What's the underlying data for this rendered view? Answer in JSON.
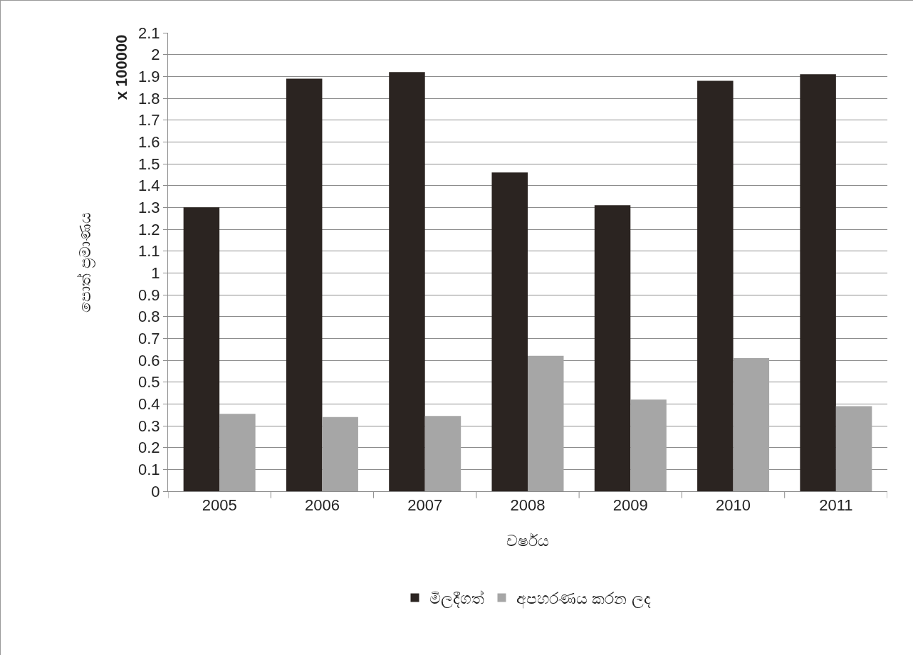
{
  "chart_data": {
    "type": "bar",
    "xlabel": "වර්ෂය",
    "ylabel": "පොත් ප්‍රමාණය",
    "annotations": [
      "x 100000"
    ],
    "categories": [
      "2005",
      "2006",
      "2007",
      "2008",
      "2009",
      "2010",
      "2011"
    ],
    "series": [
      {
        "name": "මිලදීගත්",
        "color": "#2b2421",
        "values": [
          1.3,
          1.89,
          1.92,
          1.46,
          1.31,
          1.88,
          1.91
        ]
      },
      {
        "name": "අපහරණය කරන ලද",
        "color": "#a6a6a6",
        "values": [
          0.355,
          0.34,
          0.345,
          0.62,
          0.42,
          0.61,
          0.39
        ]
      }
    ],
    "ylim": [
      0,
      2.1
    ],
    "yticks": [
      0,
      0.1,
      0.2,
      0.3,
      0.4,
      0.5,
      0.6,
      0.7,
      0.8,
      0.9,
      1,
      1.1,
      1.2,
      1.3,
      1.4,
      1.5,
      1.6,
      1.7,
      1.8,
      1.9,
      2,
      2.1
    ],
    "grid": "y",
    "legend": "bottom"
  }
}
